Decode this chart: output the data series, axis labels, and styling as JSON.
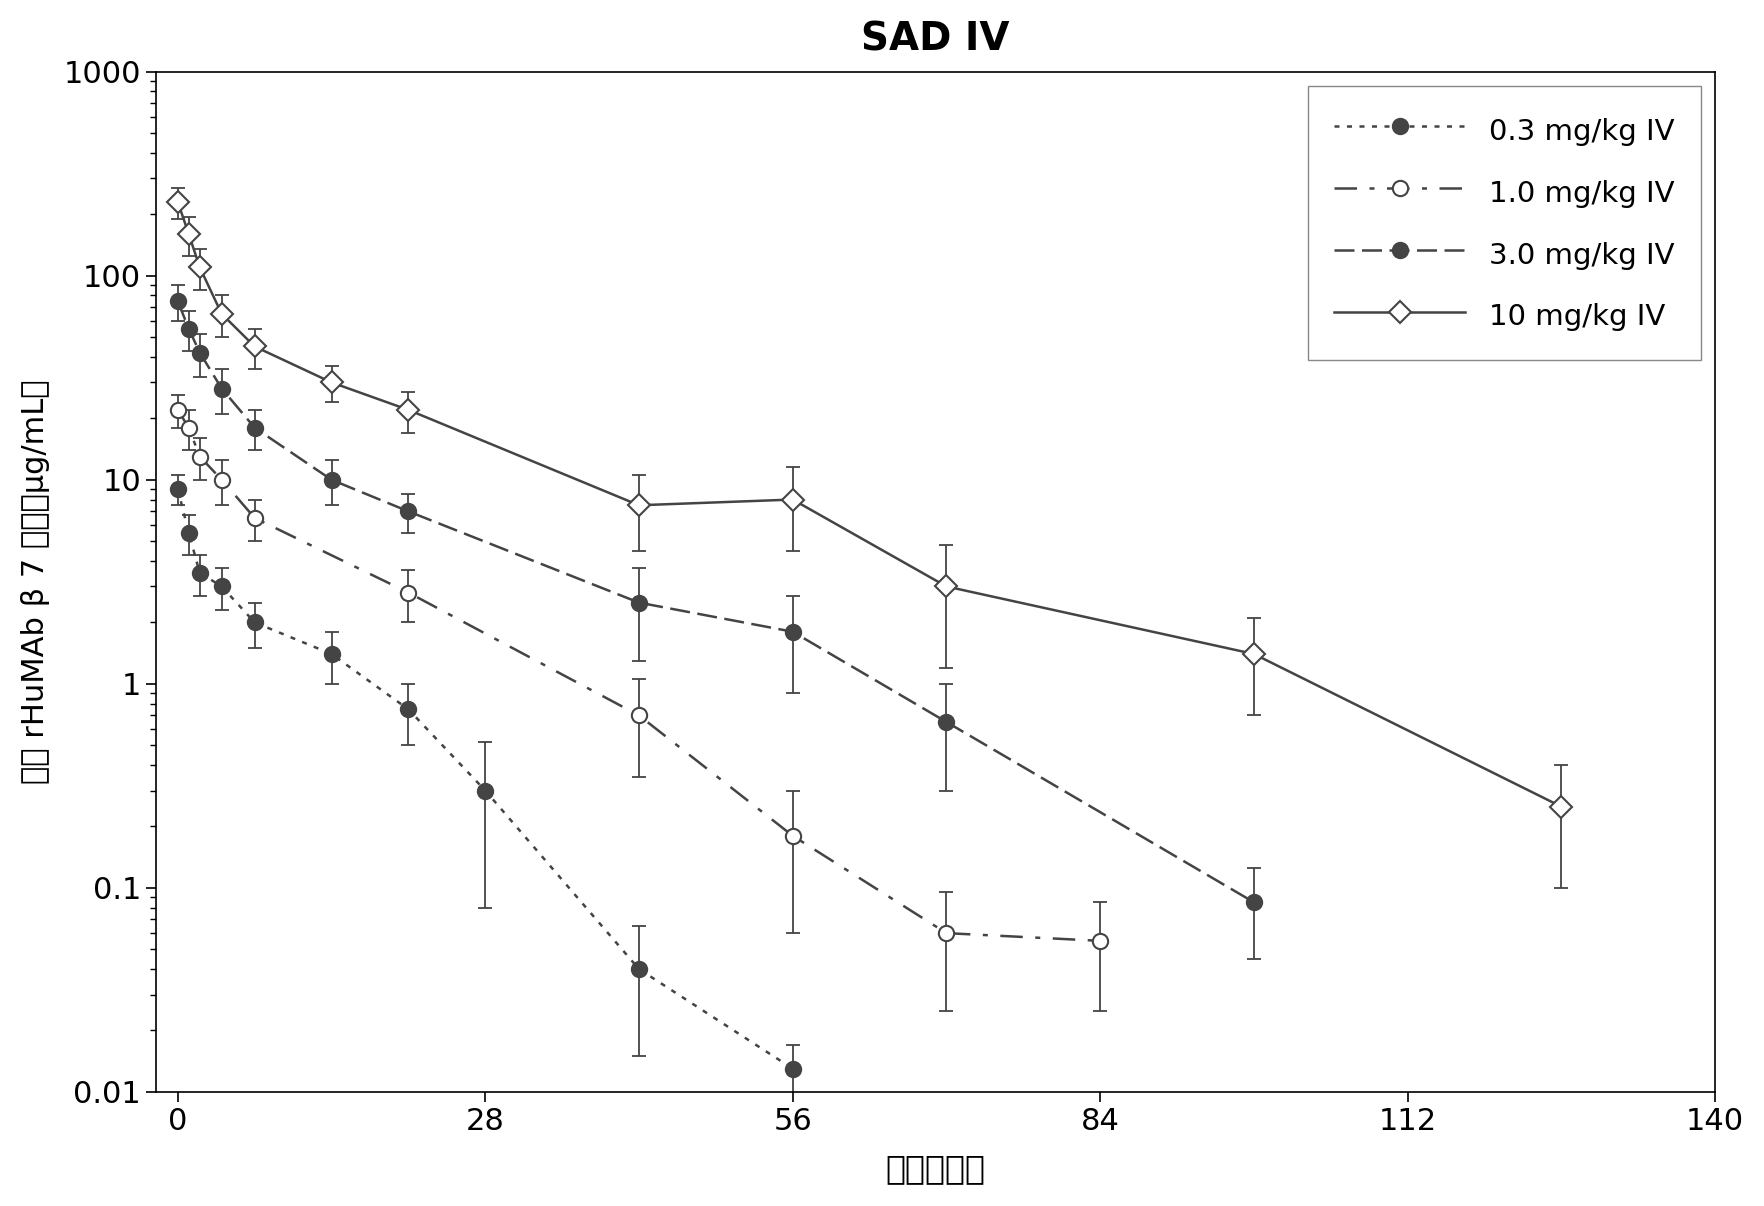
{
  "title": "SAD IV",
  "xlabel": "时间（天）",
  "ylabel": "血清 rHuMAb β 7 浓度（μg/mL）",
  "xlim": [
    -2,
    140
  ],
  "ylim_log": [
    0.01,
    1000
  ],
  "xticks": [
    0,
    28,
    56,
    84,
    112,
    140
  ],
  "background_color": "#ffffff",
  "series": [
    {
      "label": "0.3 mg/kg IV",
      "linestyle": "dotted",
      "marker": "o",
      "marker_filled": true,
      "color": "#444444",
      "x": [
        0,
        1,
        2,
        4,
        7,
        14,
        21,
        28,
        42,
        56
      ],
      "y": [
        9.0,
        5.5,
        3.5,
        3.0,
        2.0,
        1.4,
        0.75,
        0.3,
        0.04,
        0.013
      ],
      "yerr_lo": [
        1.5,
        1.2,
        0.8,
        0.7,
        0.5,
        0.4,
        0.25,
        0.22,
        0.025,
        0.004
      ],
      "yerr_hi": [
        1.5,
        1.2,
        0.8,
        0.7,
        0.5,
        0.4,
        0.25,
        0.22,
        0.025,
        0.004
      ]
    },
    {
      "label": "1.0 mg/kg IV",
      "linestyle": "dashed_sparse",
      "marker": "o",
      "marker_filled": false,
      "color": "#444444",
      "x": [
        0,
        1,
        2,
        4,
        7,
        21,
        42,
        56,
        70,
        84
      ],
      "y": [
        22,
        18,
        13,
        10,
        6.5,
        2.8,
        0.7,
        0.18,
        0.06,
        0.055
      ],
      "yerr_lo": [
        4,
        4,
        3,
        2.5,
        1.5,
        0.8,
        0.35,
        0.12,
        0.035,
        0.03
      ],
      "yerr_hi": [
        4,
        4,
        3,
        2.5,
        1.5,
        0.8,
        0.35,
        0.12,
        0.035,
        0.03
      ]
    },
    {
      "label": "3.0 mg/kg IV",
      "linestyle": "dashed_dense",
      "marker": "o",
      "marker_filled": true,
      "color": "#444444",
      "x": [
        0,
        1,
        2,
        4,
        7,
        14,
        21,
        42,
        56,
        70,
        98
      ],
      "y": [
        75,
        55,
        42,
        28,
        18,
        10,
        7.0,
        2.5,
        1.8,
        0.65,
        0.085
      ],
      "yerr_lo": [
        15,
        12,
        10,
        7,
        4,
        2.5,
        1.5,
        1.2,
        0.9,
        0.35,
        0.04
      ],
      "yerr_hi": [
        15,
        12,
        10,
        7,
        4,
        2.5,
        1.5,
        1.2,
        0.9,
        0.35,
        0.04
      ]
    },
    {
      "label": "10 mg/kg IV",
      "linestyle": "solid",
      "marker": "D",
      "marker_filled": false,
      "color": "#444444",
      "x": [
        0,
        1,
        2,
        4,
        7,
        14,
        21,
        42,
        56,
        70,
        98,
        126
      ],
      "y": [
        230,
        160,
        110,
        65,
        45,
        30,
        22,
        7.5,
        8.0,
        3.0,
        1.4,
        0.25
      ],
      "yerr_lo": [
        40,
        35,
        25,
        15,
        10,
        6,
        5,
        3,
        3.5,
        1.8,
        0.7,
        0.15
      ],
      "yerr_hi": [
        40,
        35,
        25,
        15,
        10,
        6,
        5,
        3,
        3.5,
        1.8,
        0.7,
        0.15
      ]
    }
  ]
}
